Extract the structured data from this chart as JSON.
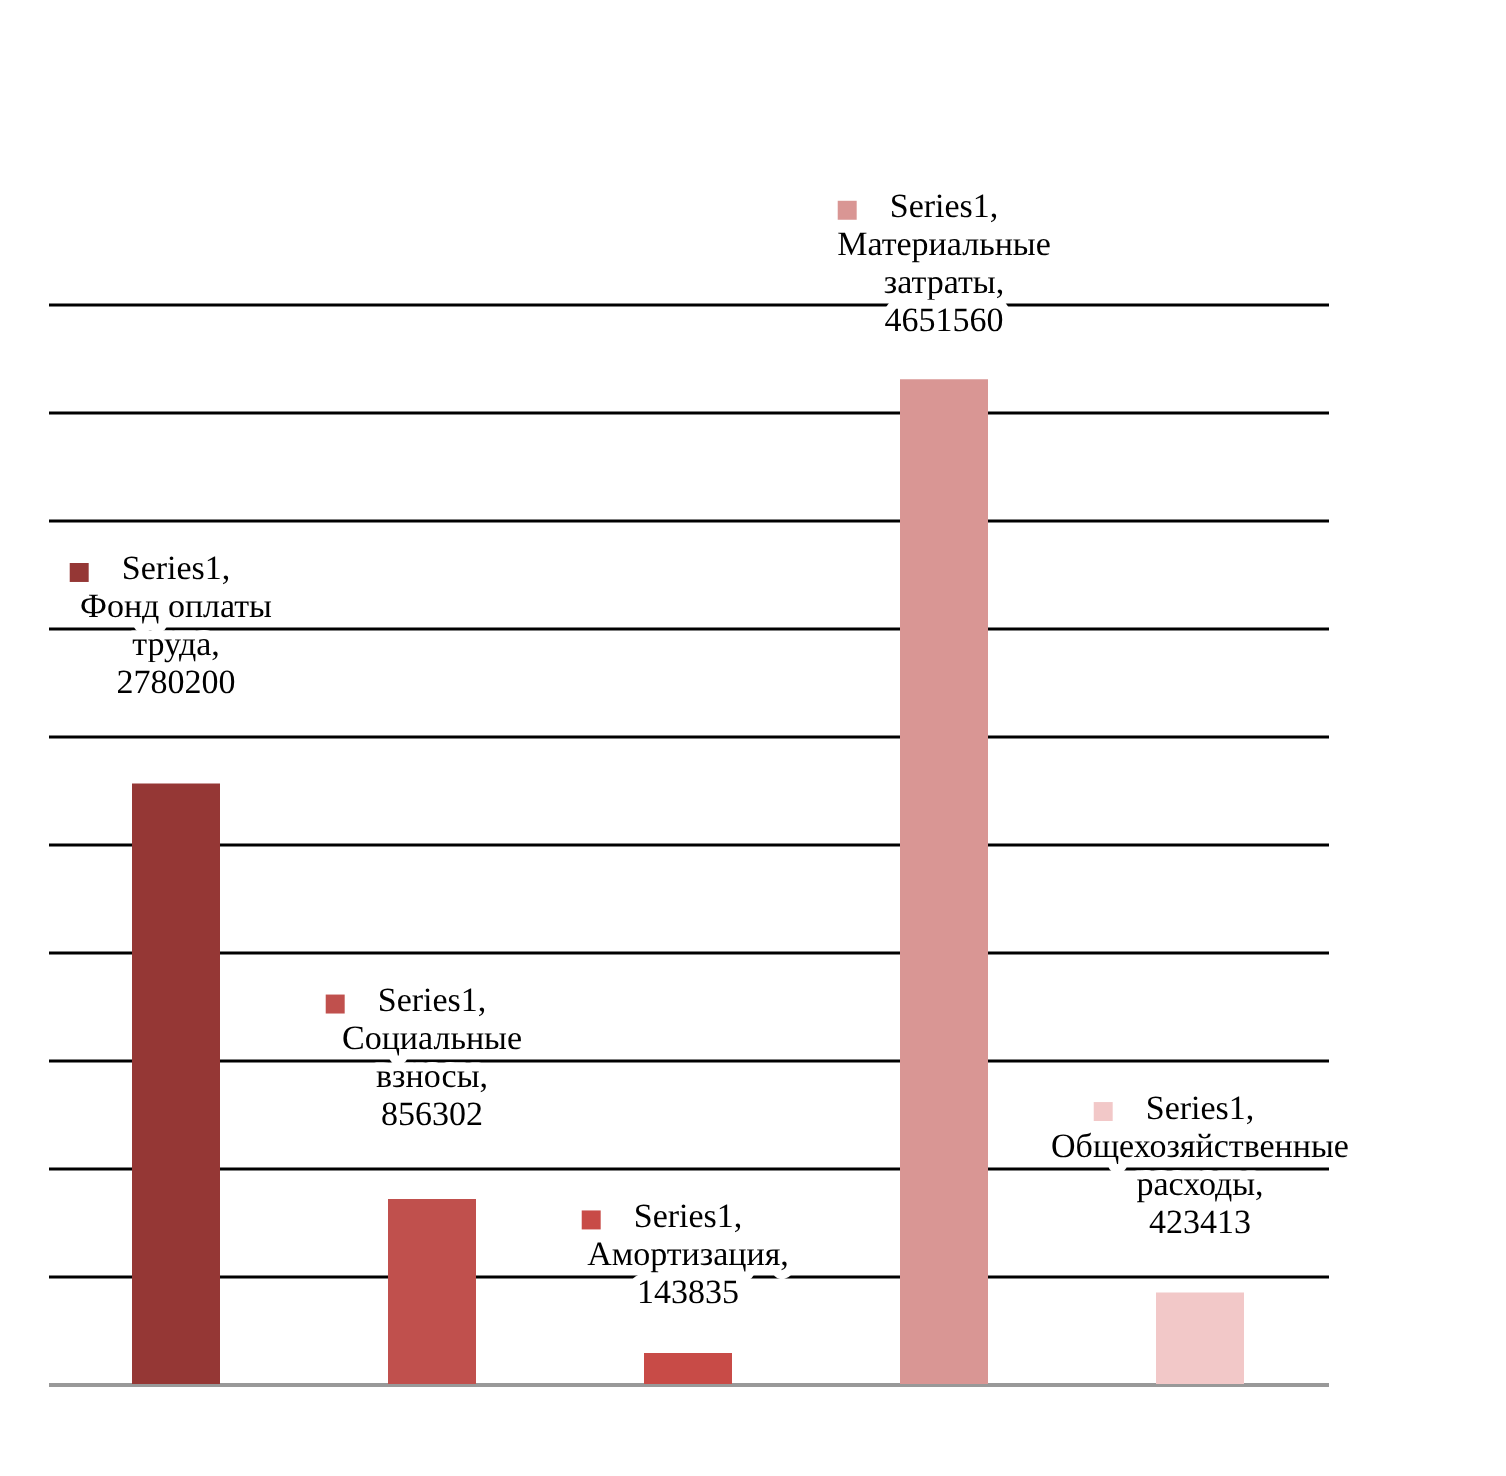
{
  "chart_data": {
    "type": "bar",
    "categories": [
      null,
      null,
      null,
      null,
      null
    ],
    "values": [
      2780200,
      856302,
      143835,
      4651560,
      423413
    ],
    "colors": [
      "#953735",
      "#c0504d",
      "#c84b47",
      "#d99694",
      "#f2c8c8"
    ],
    "value_labels": [
      "Series1, Фонд оплаты труда, 2780200",
      "Series1, Социальные взносы, 856302",
      "Series1, Амортизация, 143835",
      "Series1, Материальные затраты, 4651560",
      "Series1, Общехозяйственные расходы, 423413"
    ],
    "ylim": [
      0,
      5000000
    ],
    "yticks": [
      {
        "value": 500000,
        "label": null
      },
      {
        "value": 1000000,
        "label": null
      },
      {
        "value": 1500000,
        "label": null
      },
      {
        "value": 2000000,
        "label": null
      },
      {
        "value": 2500000,
        "label": null
      },
      {
        "value": 3000000,
        "label": null
      },
      {
        "value": 3500000,
        "label": null
      },
      {
        "value": 4000000,
        "label": null
      },
      {
        "value": 4500000,
        "label": null
      },
      {
        "value": 5000000,
        "label": null
      }
    ],
    "grid": "y",
    "tick_labels": false
  }
}
